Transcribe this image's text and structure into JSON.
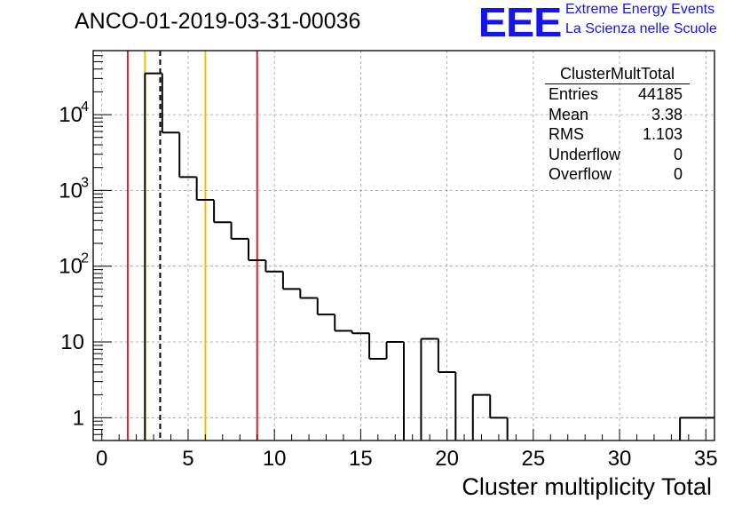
{
  "chart_data": {
    "type": "bar",
    "title": "ANCO-01-2019-03-31-00036",
    "xlabel": "Cluster multiplicity Total",
    "ylabel": "",
    "yscale": "log",
    "xlim": [
      -0.5,
      35.5
    ],
    "ylim": [
      0.5,
      70000
    ],
    "grid": true,
    "x_ticks": [
      "0",
      "5",
      "10",
      "15",
      "20",
      "25",
      "30",
      "35"
    ],
    "y_ticks": [
      {
        "value": 1,
        "base": "1",
        "exp": ""
      },
      {
        "value": 10,
        "base": "10",
        "exp": ""
      },
      {
        "value": 100,
        "base": "10",
        "exp": "2"
      },
      {
        "value": 1000,
        "base": "10",
        "exp": "3"
      },
      {
        "value": 10000,
        "base": "10",
        "exp": "4"
      }
    ],
    "bin_width": 1,
    "bin_centers": [
      0,
      1,
      2,
      3,
      4,
      5,
      6,
      7,
      8,
      9,
      10,
      11,
      12,
      13,
      14,
      15,
      16,
      17,
      18,
      19,
      20,
      21,
      22,
      23,
      24,
      25,
      26,
      27,
      28,
      29,
      30,
      31,
      32,
      33,
      34,
      35
    ],
    "values": [
      0,
      0,
      0,
      35000,
      5800,
      1500,
      750,
      380,
      230,
      120,
      85,
      50,
      38,
      23,
      14,
      13,
      6,
      10,
      0,
      11,
      4,
      0,
      2,
      1,
      0,
      0,
      0,
      0,
      0,
      0,
      0,
      0,
      0,
      0,
      1,
      1
    ],
    "lines": [
      {
        "x": 1.5,
        "color": "#dd2222",
        "style": "solid"
      },
      {
        "x": 2.5,
        "color": "#f0c000",
        "style": "solid"
      },
      {
        "x": 3.38,
        "color": "#000000",
        "style": "dashed"
      },
      {
        "x": 6.0,
        "color": "#f0c000",
        "style": "solid"
      },
      {
        "x": 9.0,
        "color": "#dd2222",
        "style": "solid"
      }
    ]
  },
  "logo": {
    "text": "EEE",
    "line1": "Extreme Energy Events",
    "line2": "La Scienza nelle Scuole",
    "color": "#1414ee"
  },
  "stats": {
    "title": "ClusterMultTotal",
    "rows": [
      {
        "label": "Entries",
        "value": "44185"
      },
      {
        "label": "Mean",
        "value": "3.38"
      },
      {
        "label": "RMS",
        "value": "1.103"
      },
      {
        "label": "Underflow",
        "value": "0"
      },
      {
        "label": "Overflow",
        "value": "0"
      }
    ]
  }
}
